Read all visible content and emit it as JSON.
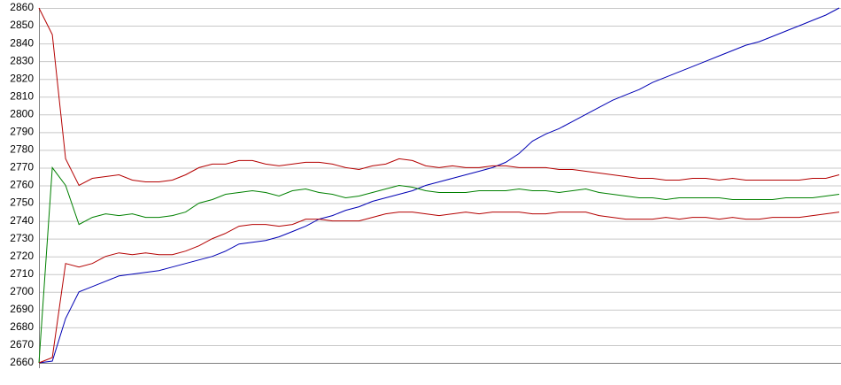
{
  "chart_data": {
    "type": "line",
    "categories": [
      null,
      null,
      null,
      null,
      null,
      null,
      null,
      null,
      null,
      null,
      null,
      null,
      null,
      null,
      null,
      null,
      null,
      null,
      null,
      null,
      null,
      null,
      null,
      null,
      null,
      null,
      null,
      null,
      null,
      null,
      null,
      null,
      null,
      null,
      null,
      null,
      null,
      null,
      null,
      null,
      null,
      null,
      null,
      null,
      null,
      null,
      null,
      null,
      null,
      null,
      null,
      null,
      null,
      null,
      null,
      null,
      null,
      null,
      null,
      null,
      null
    ],
    "series": [
      {
        "color": "#0000b4",
        "values": [
          2660,
          2661,
          2685,
          2700,
          2703,
          2706,
          2709,
          2710,
          2711,
          2712,
          2714,
          2716,
          2718,
          2720,
          2723,
          2727,
          2728,
          2729,
          2731,
          2734,
          2737,
          2741,
          2743,
          2746,
          2748,
          2751,
          2753,
          2755,
          2757,
          2760,
          2762,
          2764,
          2766,
          2768,
          2770,
          2773,
          2778,
          2785,
          2789,
          2792,
          2796,
          2800,
          2804,
          2808,
          2811,
          2814,
          2818,
          2821,
          2824,
          2827,
          2830,
          2833,
          2836,
          2839,
          2841,
          2844,
          2847,
          2850,
          2853,
          2856,
          2860
        ]
      },
      {
        "color": "#008000",
        "values": [
          2660,
          2770,
          2760,
          2738,
          2742,
          2744,
          2743,
          2744,
          2742,
          2742,
          2743,
          2745,
          2750,
          2752,
          2755,
          2756,
          2757,
          2756,
          2754,
          2757,
          2758,
          2756,
          2755,
          2753,
          2754,
          2756,
          2758,
          2760,
          2759,
          2757,
          2756,
          2756,
          2756,
          2757,
          2757,
          2757,
          2758,
          2757,
          2757,
          2756,
          2757,
          2758,
          2756,
          2755,
          2754,
          2753,
          2753,
          2752,
          2753,
          2753,
          2753,
          2753,
          2752,
          2752,
          2752,
          2752,
          2753,
          2753,
          2753,
          2754,
          2755
        ]
      },
      {
        "color": "#b40000",
        "values": [
          2860,
          2845,
          2775,
          2760,
          2764,
          2765,
          2766,
          2763,
          2762,
          2762,
          2763,
          2766,
          2770,
          2772,
          2772,
          2774,
          2774,
          2772,
          2771,
          2772,
          2773,
          2773,
          2772,
          2770,
          2769,
          2771,
          2772,
          2775,
          2774,
          2771,
          2770,
          2771,
          2770,
          2770,
          2771,
          2771,
          2770,
          2770,
          2770,
          2769,
          2769,
          2768,
          2767,
          2766,
          2765,
          2764,
          2764,
          2763,
          2763,
          2764,
          2764,
          2763,
          2764,
          2763,
          2763,
          2763,
          2763,
          2763,
          2764,
          2764,
          2766
        ]
      },
      {
        "color": "#b40000",
        "values": [
          2660,
          2663,
          2716,
          2714,
          2716,
          2720,
          2722,
          2721,
          2722,
          2721,
          2721,
          2723,
          2726,
          2730,
          2733,
          2737,
          2738,
          2738,
          2737,
          2738,
          2741,
          2741,
          2740,
          2740,
          2740,
          2742,
          2744,
          2745,
          2745,
          2744,
          2743,
          2744,
          2745,
          2744,
          2745,
          2745,
          2745,
          2744,
          2744,
          2745,
          2745,
          2745,
          2743,
          2742,
          2741,
          2741,
          2741,
          2742,
          2741,
          2742,
          2742,
          2741,
          2742,
          2741,
          2741,
          2742,
          2742,
          2742,
          2743,
          2744,
          2745
        ]
      }
    ],
    "ylim": [
      2660,
      2860
    ],
    "yticks": [
      2660,
      2670,
      2680,
      2690,
      2700,
      2710,
      2720,
      2730,
      2740,
      2750,
      2760,
      2770,
      2780,
      2790,
      2800,
      2810,
      2820,
      2830,
      2840,
      2850,
      2860
    ],
    "grid": true
  }
}
